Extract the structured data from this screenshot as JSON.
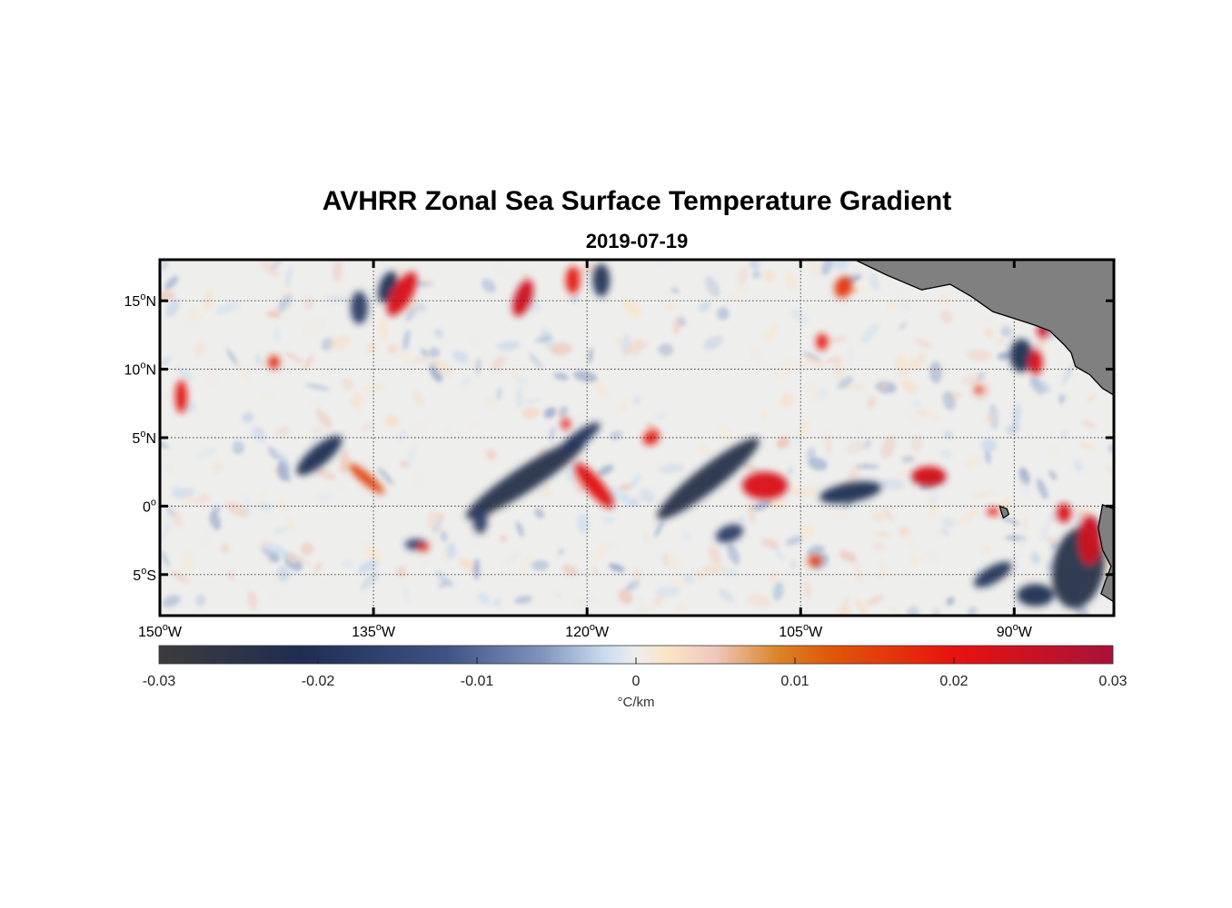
{
  "map": {
    "title": "AVHRR Zonal Sea Surface Temperature Gradient",
    "subtitle": "2019-07-19",
    "extent": {
      "lon": [
        -150,
        -83
      ],
      "lat": [
        -8,
        18
      ]
    },
    "lon_ticks": [
      {
        "deg": "150",
        "hemi": "W",
        "value": -150
      },
      {
        "deg": "135",
        "hemi": "W",
        "value": -135
      },
      {
        "deg": "120",
        "hemi": "W",
        "value": -120
      },
      {
        "deg": "105",
        "hemi": "W",
        "value": -105
      },
      {
        "deg": "90",
        "hemi": "W",
        "value": -90
      }
    ],
    "lat_ticks": [
      {
        "deg": "15",
        "hemi": "N",
        "value": 15
      },
      {
        "deg": "10",
        "hemi": "N",
        "value": 10
      },
      {
        "deg": "5",
        "hemi": "N",
        "value": 5
      },
      {
        "deg": "0",
        "hemi": "",
        "value": 0
      },
      {
        "deg": "5",
        "hemi": "S",
        "value": -5
      }
    ],
    "degree_symbol": "o",
    "land_color": "#808080",
    "grid": "dotted",
    "features": [
      {
        "type": "neg",
        "lon": -138.8,
        "lat": 3.7,
        "rx": 2.0,
        "ry": 0.7,
        "rot": -40,
        "strength": 0.8
      },
      {
        "type": "neg",
        "lon": -124.3,
        "lat": 2.0,
        "rx": 5.0,
        "ry": 0.9,
        "rot": -33,
        "strength": 1.0
      },
      {
        "type": "neg",
        "lon": -120.5,
        "lat": 5.0,
        "rx": 1.7,
        "ry": 0.5,
        "rot": -35,
        "strength": 0.7
      },
      {
        "type": "neg",
        "lon": -111.5,
        "lat": 2.0,
        "rx": 4.5,
        "ry": 0.9,
        "rot": -38,
        "strength": 1.0
      },
      {
        "type": "neg",
        "lon": -101.5,
        "lat": 1.0,
        "rx": 2.2,
        "ry": 0.7,
        "rot": -10,
        "strength": 0.8
      },
      {
        "type": "neg",
        "lon": -96.0,
        "lat": 2.0,
        "rx": 1.2,
        "ry": 0.5,
        "rot": 0,
        "strength": 0.7
      },
      {
        "type": "neg",
        "lon": -85.5,
        "lat": -4.5,
        "rx": 1.8,
        "ry": 3.0,
        "rot": 10,
        "strength": 1.0
      },
      {
        "type": "neg",
        "lon": -88.5,
        "lat": -6.5,
        "rx": 1.3,
        "ry": 0.8,
        "rot": 0,
        "strength": 0.8
      },
      {
        "type": "neg",
        "lon": -91.5,
        "lat": -5.0,
        "rx": 1.5,
        "ry": 0.6,
        "rot": -30,
        "strength": 0.7
      },
      {
        "type": "neg",
        "lon": -89.5,
        "lat": 11.0,
        "rx": 0.8,
        "ry": 1.2,
        "rot": 0,
        "strength": 0.8
      },
      {
        "type": "neg",
        "lon": -134.0,
        "lat": 16.0,
        "rx": 0.6,
        "ry": 1.2,
        "rot": 20,
        "strength": 0.8
      },
      {
        "type": "neg",
        "lon": -119.0,
        "lat": 16.5,
        "rx": 0.6,
        "ry": 1.2,
        "rot": 0,
        "strength": 0.7
      },
      {
        "type": "neg",
        "lon": -136.0,
        "lat": 14.5,
        "rx": 0.6,
        "ry": 1.2,
        "rot": 0,
        "strength": 0.6
      },
      {
        "type": "neg",
        "lon": -110.0,
        "lat": -2.0,
        "rx": 1.0,
        "ry": 0.6,
        "rot": -20,
        "strength": 0.6
      },
      {
        "type": "neg",
        "lon": -127.5,
        "lat": -1.0,
        "rx": 0.5,
        "ry": 1.0,
        "rot": 0,
        "strength": 0.6
      },
      {
        "type": "neg",
        "lon": -132.0,
        "lat": -2.8,
        "rx": 0.8,
        "ry": 0.4,
        "rot": 0,
        "strength": 0.6
      },
      {
        "type": "pos",
        "lon": -133.0,
        "lat": 15.5,
        "rx": 0.7,
        "ry": 1.8,
        "rot": 30,
        "strength": 0.9
      },
      {
        "type": "pos",
        "lon": -124.5,
        "lat": 15.2,
        "rx": 0.6,
        "ry": 1.4,
        "rot": 20,
        "strength": 1.0
      },
      {
        "type": "pos",
        "lon": -121.0,
        "lat": 16.5,
        "rx": 0.5,
        "ry": 1.0,
        "rot": 0,
        "strength": 0.7
      },
      {
        "type": "pos",
        "lon": -148.5,
        "lat": 8.0,
        "rx": 0.4,
        "ry": 1.2,
        "rot": 0,
        "strength": 0.8
      },
      {
        "type": "pos",
        "lon": -119.5,
        "lat": 1.5,
        "rx": 2.0,
        "ry": 0.6,
        "rot": 50,
        "strength": 0.8
      },
      {
        "type": "pos",
        "lon": -107.5,
        "lat": 1.5,
        "rx": 1.6,
        "ry": 1.0,
        "rot": 0,
        "strength": 0.9
      },
      {
        "type": "pos",
        "lon": -96.0,
        "lat": 2.2,
        "rx": 1.2,
        "ry": 0.7,
        "rot": 0,
        "strength": 0.9
      },
      {
        "type": "pos",
        "lon": -88.5,
        "lat": 10.5,
        "rx": 0.5,
        "ry": 0.9,
        "rot": 0,
        "strength": 0.9
      },
      {
        "type": "pos",
        "lon": -88.0,
        "lat": 12.8,
        "rx": 0.4,
        "ry": 0.5,
        "rot": 0,
        "strength": 1.0
      },
      {
        "type": "pos",
        "lon": -84.7,
        "lat": -2.5,
        "rx": 0.8,
        "ry": 1.8,
        "rot": 0,
        "strength": 1.0
      },
      {
        "type": "pos",
        "lon": -86.5,
        "lat": -0.5,
        "rx": 0.5,
        "ry": 0.7,
        "rot": 0,
        "strength": 0.9
      },
      {
        "type": "pos",
        "lon": -103.5,
        "lat": 12.0,
        "rx": 0.4,
        "ry": 0.6,
        "rot": 0,
        "strength": 0.7
      },
      {
        "type": "pos",
        "lon": -115.5,
        "lat": 5.0,
        "rx": 0.6,
        "ry": 0.5,
        "rot": -30,
        "strength": 0.7
      },
      {
        "type": "pos",
        "lon": -135.5,
        "lat": 2.0,
        "rx": 1.6,
        "ry": 0.4,
        "rot": 40,
        "strength": 0.4
      },
      {
        "type": "pos",
        "lon": -131.5,
        "lat": -3.0,
        "rx": 0.4,
        "ry": 0.3,
        "rot": 0,
        "strength": 0.6
      },
      {
        "type": "pos",
        "lon": -121.5,
        "lat": 6.0,
        "rx": 0.3,
        "ry": 0.4,
        "rot": 0,
        "strength": 0.8
      },
      {
        "type": "pos",
        "lon": -104.0,
        "lat": -4.0,
        "rx": 0.5,
        "ry": 0.4,
        "rot": 0,
        "strength": 0.5
      },
      {
        "type": "pos",
        "lon": -142.0,
        "lat": 10.5,
        "rx": 0.4,
        "ry": 0.5,
        "rot": 0,
        "strength": 0.6
      },
      {
        "type": "pos",
        "lon": -102.0,
        "lat": 16.0,
        "rx": 0.6,
        "ry": 0.8,
        "rot": 20,
        "strength": 0.5
      },
      {
        "type": "pos",
        "lon": -92.5,
        "lat": 8.5,
        "rx": 0.3,
        "ry": 0.3,
        "rot": 0,
        "strength": 0.6
      },
      {
        "type": "pos",
        "lon": -91.5,
        "lat": -0.4,
        "rx": 0.4,
        "ry": 0.3,
        "rot": 0,
        "strength": 0.7
      }
    ]
  },
  "colorbar": {
    "labels": [
      "-0.03",
      "-0.02",
      "-0.01",
      "0",
      "0.01",
      "0.02",
      "0.03"
    ],
    "range": [
      -0.03,
      0.03
    ],
    "units": "°C/km",
    "stops": [
      {
        "v": -0.03,
        "color": "#3c3c3c"
      },
      {
        "v": -0.021,
        "color": "#1f2d52"
      },
      {
        "v": -0.012,
        "color": "#3e5384"
      },
      {
        "v": -0.006,
        "color": "#7e92bb"
      },
      {
        "v": -0.002,
        "color": "#c9dbef"
      },
      {
        "v": 0.0,
        "color": "#ededed"
      },
      {
        "v": 0.002,
        "color": "#fbe4c4"
      },
      {
        "v": 0.005,
        "color": "#efc7bd"
      },
      {
        "v": 0.009,
        "color": "#d98324"
      },
      {
        "v": 0.012,
        "color": "#e05a0a"
      },
      {
        "v": 0.02,
        "color": "#e8120e"
      },
      {
        "v": 0.03,
        "color": "#a8123a"
      }
    ]
  }
}
